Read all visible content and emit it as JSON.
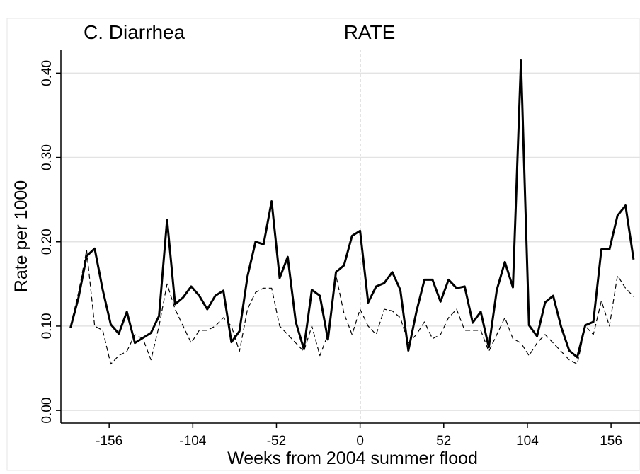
{
  "chart_data": {
    "type": "line",
    "title": "C. Diarrhea",
    "subtitle": "RATE",
    "x_label": "Weeks from 2004 summer flood",
    "y_label": "Rate per 1000",
    "x": [
      -180,
      -175,
      -170,
      -165,
      -160,
      -155,
      -150,
      -145,
      -140,
      -135,
      -130,
      -125,
      -120,
      -115,
      -110,
      -105,
      -100,
      -95,
      -90,
      -85,
      -80,
      -75,
      -70,
      -65,
      -60,
      -55,
      -50,
      -45,
      -40,
      -35,
      -30,
      -25,
      -20,
      -15,
      -10,
      -5,
      0,
      5,
      10,
      15,
      20,
      25,
      30,
      35,
      40,
      45,
      50,
      55,
      60,
      65,
      70,
      75,
      80,
      85,
      90,
      95,
      100,
      105,
      110,
      115,
      120,
      125,
      130,
      135,
      140,
      145,
      150,
      155,
      160,
      165,
      170
    ],
    "series": [
      {
        "color": "#000000",
        "dash": false,
        "values": [
          0.098,
          0.134,
          0.183,
          0.192,
          0.143,
          0.102,
          0.091,
          0.117,
          0.08,
          0.086,
          0.092,
          0.112,
          0.226,
          0.126,
          0.134,
          0.147,
          0.136,
          0.12,
          0.136,
          0.142,
          0.081,
          0.094,
          0.159,
          0.2,
          0.197,
          0.248,
          0.157,
          0.182,
          0.105,
          0.073,
          0.143,
          0.136,
          0.084,
          0.164,
          0.172,
          0.207,
          0.213,
          0.128,
          0.147,
          0.151,
          0.164,
          0.143,
          0.071,
          0.117,
          0.155,
          0.155,
          0.129,
          0.155,
          0.145,
          0.147,
          0.104,
          0.117,
          0.075,
          0.143,
          0.176,
          0.146,
          0.415,
          0.101,
          0.088,
          0.128,
          0.136,
          0.099,
          0.071,
          0.063,
          0.101,
          0.105,
          0.191,
          0.191,
          0.231,
          0.243,
          0.179
        ]
      },
      {
        "color": "#000000",
        "dash": true,
        "values": [
          0.1,
          0.14,
          0.19,
          0.1,
          0.095,
          0.055,
          0.065,
          0.07,
          0.09,
          0.085,
          0.06,
          0.1,
          0.15,
          0.12,
          0.1,
          0.08,
          0.095,
          0.095,
          0.1,
          0.11,
          0.1,
          0.07,
          0.12,
          0.14,
          0.145,
          0.145,
          0.1,
          0.09,
          0.08,
          0.07,
          0.1,
          0.065,
          0.09,
          0.16,
          0.115,
          0.09,
          0.12,
          0.1,
          0.09,
          0.12,
          0.118,
          0.11,
          0.08,
          0.09,
          0.105,
          0.085,
          0.09,
          0.11,
          0.12,
          0.095,
          0.095,
          0.095,
          0.07,
          0.09,
          0.11,
          0.085,
          0.08,
          0.065,
          0.08,
          0.09,
          0.08,
          0.07,
          0.06,
          0.055,
          0.1,
          0.09,
          0.13,
          0.1,
          0.16,
          0.145,
          0.135
        ]
      }
    ],
    "xlim": [
      -186,
      174
    ],
    "ylim": [
      -0.015,
      0.428
    ],
    "xticks": [
      -156,
      -104,
      -52,
      0,
      52,
      104,
      156
    ],
    "yticks": [
      {
        "value": 0,
        "label": "0.00"
      },
      {
        "value": 0.1,
        "label": "0.10"
      },
      {
        "value": 0.2,
        "label": "0.20"
      },
      {
        "value": 0.3,
        "label": "0.30"
      },
      {
        "value": 0.4,
        "label": "0.40"
      }
    ],
    "grid": true,
    "vline": 0
  }
}
